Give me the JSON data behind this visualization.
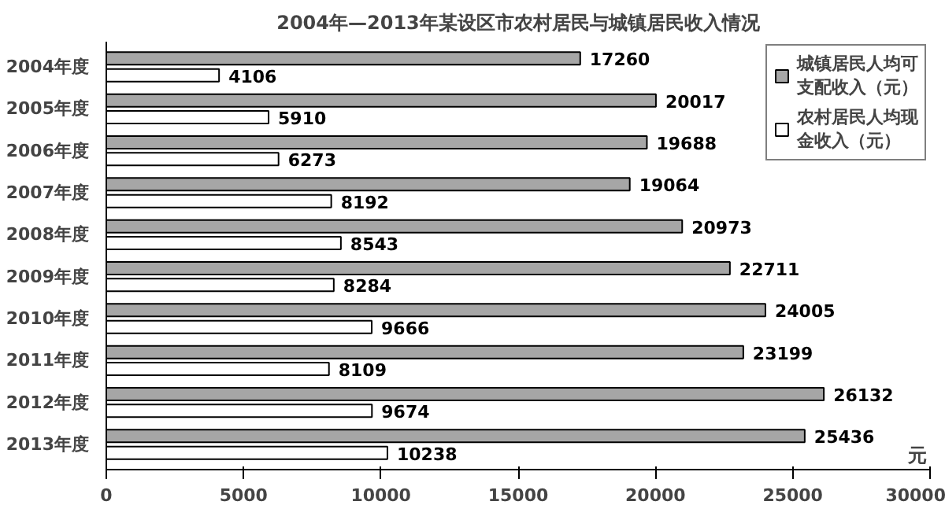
{
  "chart_data": {
    "type": "bar",
    "orientation": "horizontal",
    "title": "2004年—2013年某设区市农村居民与城镇居民收入情况",
    "xlabel": "元",
    "categories": [
      "2004年度",
      "2005年度",
      "2006年度",
      "2007年度",
      "2008年度",
      "2009年度",
      "2010年度",
      "2011年度",
      "2012年度",
      "2013年度"
    ],
    "series": [
      {
        "name": "城镇居民人均可支配收入（元）",
        "color": "#a6a6a6",
        "values": [
          17260,
          20017,
          19688,
          19064,
          20973,
          22711,
          24005,
          23199,
          26132,
          25436
        ]
      },
      {
        "name": "农村居民人均现金收入（元）",
        "color": "#ffffff",
        "values": [
          4106,
          5910,
          6273,
          8192,
          8543,
          8284,
          9666,
          8109,
          9674,
          10238
        ]
      }
    ],
    "xlim": [
      0,
      30000
    ],
    "xticks": [
      0,
      5000,
      10000,
      15000,
      20000,
      25000,
      30000
    ],
    "data_labels": true,
    "legend": "top right",
    "grid": false
  }
}
